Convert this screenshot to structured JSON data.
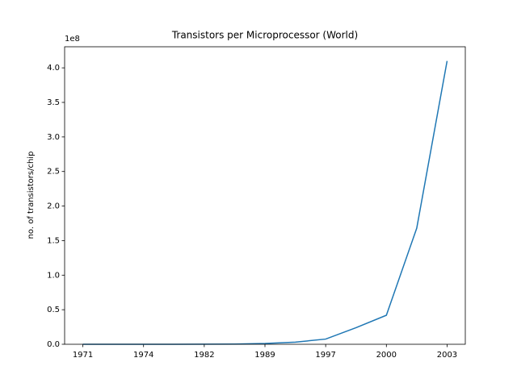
{
  "chart_data": {
    "type": "line",
    "title": "Transistors per Microprocessor (World)",
    "ylabel": "no. of transistors/chip",
    "offset_label": "1e8",
    "categories": [
      "1971",
      null,
      "1974",
      null,
      "1982",
      null,
      "1989",
      null,
      "1997",
      null,
      "2000",
      null,
      "2003"
    ],
    "series": [
      {
        "color": "#1f77b4",
        "values": [
          2308,
          3554,
          6097,
          29000,
          134000,
          275000,
          1200000,
          3100000,
          7500000,
          24000000,
          42000000,
          168000000,
          410000000
        ]
      }
    ],
    "ylim": [
      0,
      430500000
    ],
    "yticks": [
      {
        "value": 0,
        "label": "0.0"
      },
      {
        "value": 50000000,
        "label": "0.5"
      },
      {
        "value": 100000000,
        "label": "1.0"
      },
      {
        "value": 150000000,
        "label": "1.5"
      },
      {
        "value": 200000000,
        "label": "2.0"
      },
      {
        "value": 250000000,
        "label": "2.5"
      },
      {
        "value": 300000000,
        "label": "3.0"
      },
      {
        "value": 350000000,
        "label": "3.5"
      },
      {
        "value": 400000000,
        "label": "4.0"
      }
    ],
    "grid": false
  }
}
